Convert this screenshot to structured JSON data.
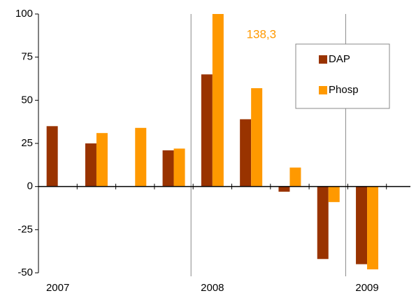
{
  "chart_data": {
    "type": "bar",
    "categories": [
      "2007",
      null,
      null,
      null,
      "2008",
      null,
      null,
      null,
      "2009"
    ],
    "series": [
      {
        "name": "DAP",
        "color": "#993300",
        "values": [
          35,
          25,
          null,
          21,
          65,
          39,
          -3,
          -42,
          -45
        ]
      },
      {
        "name": "Phosp",
        "color": "#ff9900",
        "values": [
          null,
          31,
          34,
          22,
          138.3,
          57,
          11,
          -9,
          -48
        ],
        "value_labels": [
          null,
          null,
          null,
          null,
          "138,3",
          null,
          null,
          null,
          null
        ]
      }
    ],
    "ylim": [
      -50,
      100
    ],
    "yticks": [
      -50,
      -25,
      0,
      25,
      50,
      75,
      100
    ],
    "legend": "upper right"
  }
}
